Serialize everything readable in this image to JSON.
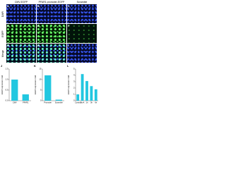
{
  "figure": {
    "columns": [
      "CMV-EGFP",
      "PFAR1 promoter-EGFP",
      "Scramble"
    ],
    "rows": [
      "DAPI",
      "EGFP",
      "Merge"
    ],
    "panels": [
      "A",
      "B",
      "C",
      "D",
      "E",
      "F",
      "G",
      "H",
      "I"
    ]
  },
  "chart_data": [
    {
      "type": "bar",
      "title": "J",
      "ylabel": "EGFP expression fold",
      "categories": [
        "CMV",
        "PFAR1"
      ],
      "values": [
        1,
        0.3
      ],
      "color": "#22c7e0",
      "ylim": [
        0,
        1.5
      ],
      "yticks": [
        {
          "value": 0,
          "label": "0.0"
        },
        {
          "value": 0.5,
          "label": "0.5"
        },
        {
          "value": 1,
          "label": "1.0"
        },
        {
          "value": 1.5,
          "label": "1.5"
        }
      ]
    },
    {
      "type": "bar",
      "title": "K",
      "ylabel": "EGFP expression fold",
      "categories": [
        "Promoter",
        "Scramble"
      ],
      "values": [
        12,
        0.5
      ],
      "color": "#22c7e0",
      "ylim": [
        0,
        15
      ],
      "yticks": [
        0,
        5,
        10,
        15
      ]
    },
    {
      "type": "bar",
      "title": "L",
      "ylabel": "EGFP expression fold",
      "categories": [
        "Control",
        "BmA",
        "1h",
        "3h",
        "6h"
      ],
      "values": [
        1,
        4.2,
        3.1,
        2.3,
        1.8
      ],
      "color": "#22c7e0",
      "ylim": [
        0,
        5
      ],
      "yticks": [
        0,
        1,
        2,
        3,
        4,
        5
      ]
    }
  ]
}
